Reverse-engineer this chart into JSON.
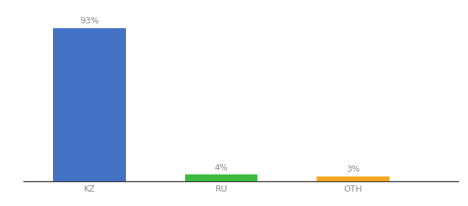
{
  "categories": [
    "KZ",
    "RU",
    "OTH"
  ],
  "values": [
    93,
    4,
    3
  ],
  "bar_colors": [
    "#4472c4",
    "#3dba3d",
    "#f5a623"
  ],
  "value_labels": [
    "93%",
    "4%",
    "3%"
  ],
  "ylim": [
    0,
    100
  ],
  "background_color": "#ffffff",
  "label_color": "#888888",
  "tick_label_color": "#888888",
  "bar_width": 0.55,
  "figsize": [
    6.8,
    3.0
  ],
  "dpi": 100
}
